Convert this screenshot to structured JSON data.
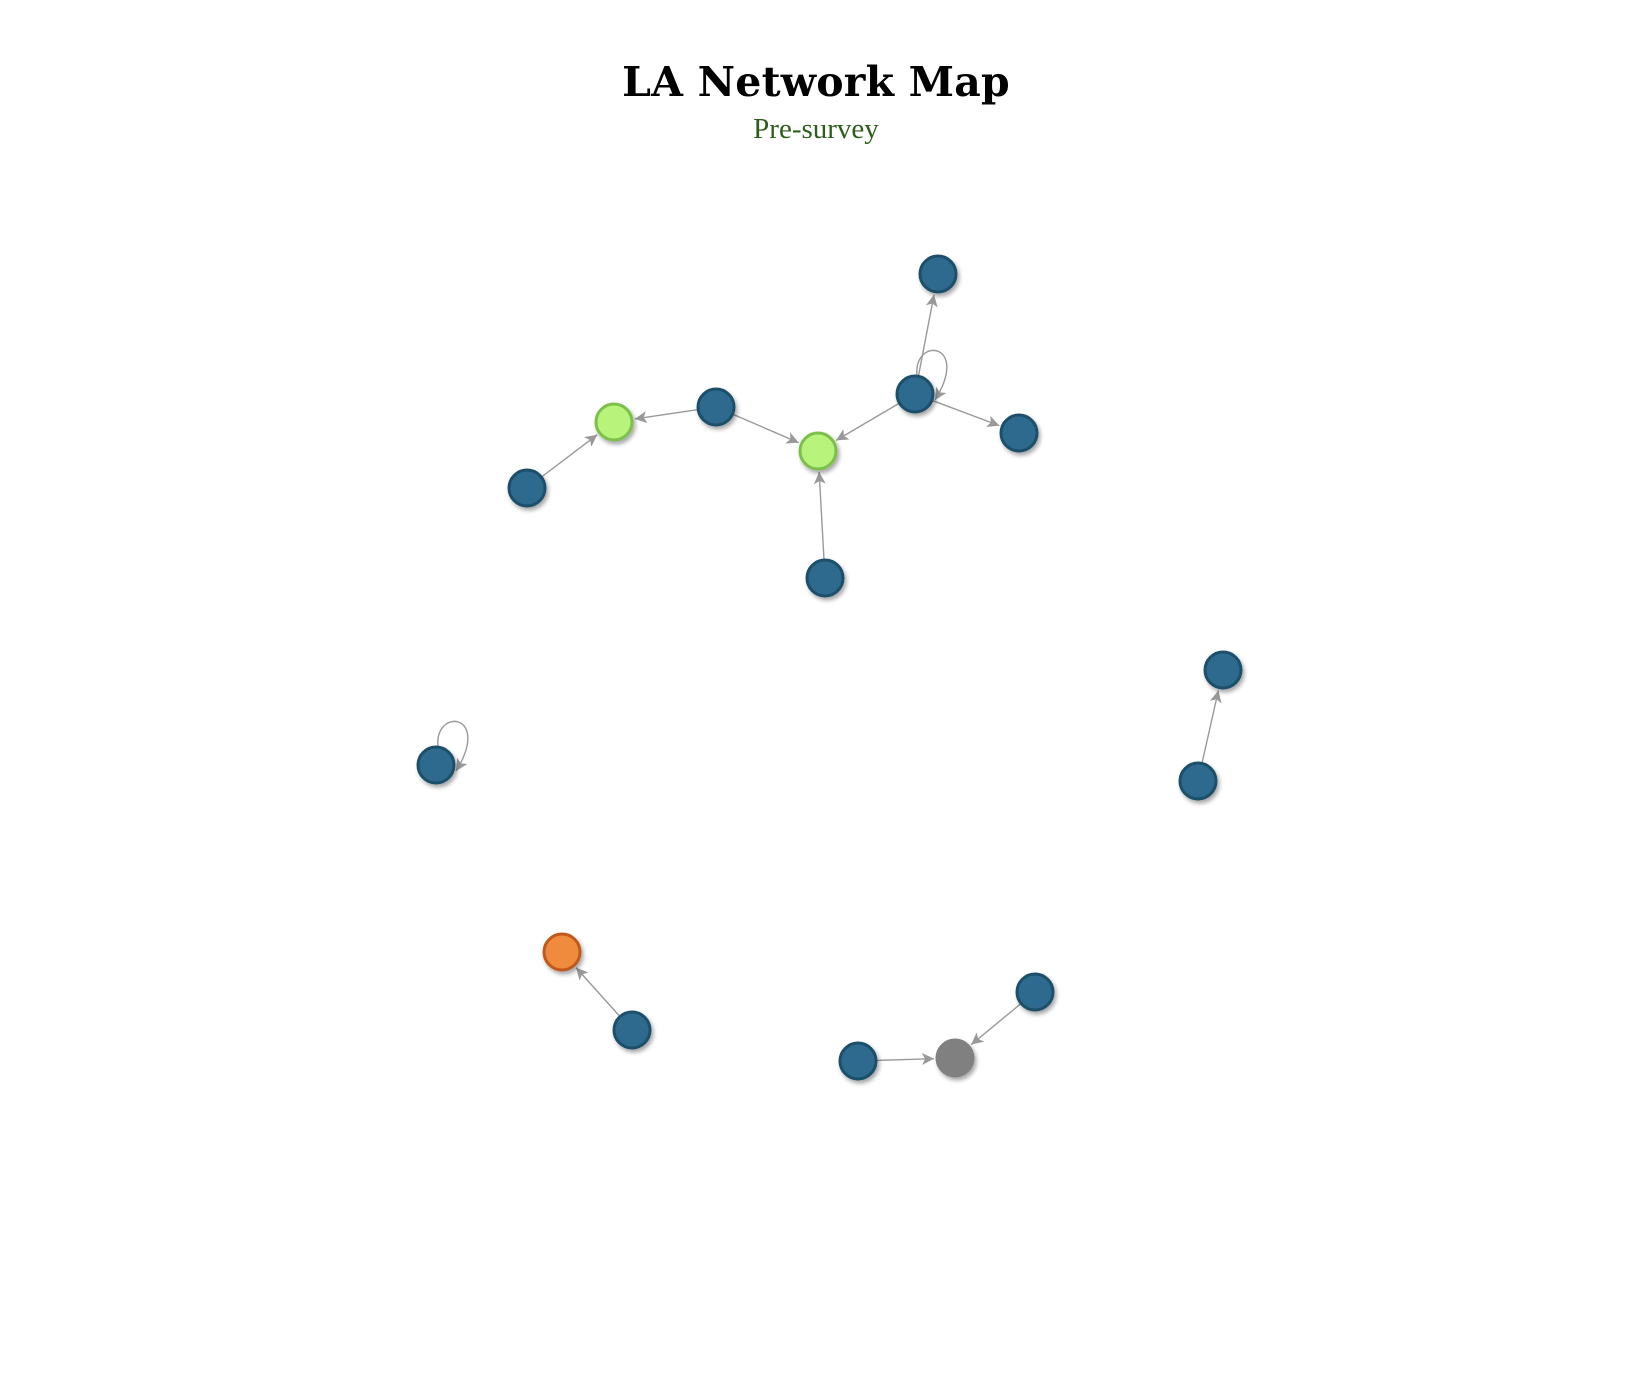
{
  "header": {
    "title": "LA Network Map",
    "subtitle": "Pre-survey"
  },
  "colors": {
    "edge": "#999999",
    "title": "#000000",
    "subtitle": "#2e5e1c",
    "node_default_fill": "#2e6b8e",
    "node_default_stroke": "#1f4f6b",
    "node_highlight_fill": "#b8f47c",
    "node_highlight_stroke": "#7cc04c",
    "node_orange_fill": "#f08a3c",
    "node_orange_stroke": "#c05a1c",
    "node_gray_fill": "#808080",
    "node_gray_stroke": "#808080"
  },
  "network": {
    "nodes": [
      {
        "id": "n1",
        "group": "default"
      },
      {
        "id": "n2",
        "group": "highlight"
      },
      {
        "id": "n3",
        "group": "default"
      },
      {
        "id": "n4",
        "group": "highlight"
      },
      {
        "id": "n5",
        "group": "default"
      },
      {
        "id": "n6",
        "group": "default"
      },
      {
        "id": "n7",
        "group": "default"
      },
      {
        "id": "n8",
        "group": "default"
      },
      {
        "id": "n9",
        "group": "default"
      },
      {
        "id": "n10",
        "group": "default"
      },
      {
        "id": "n11",
        "group": "default"
      },
      {
        "id": "n12",
        "group": "orange"
      },
      {
        "id": "n13",
        "group": "default"
      },
      {
        "id": "n14",
        "group": "default"
      },
      {
        "id": "n15",
        "group": "gray"
      },
      {
        "id": "n16",
        "group": "default"
      },
      {
        "id": "n17",
        "group": "default"
      }
    ],
    "edges": [
      {
        "source": "n1",
        "target": "n2"
      },
      {
        "source": "n3",
        "target": "n2"
      },
      {
        "source": "n3",
        "target": "n4"
      },
      {
        "source": "n5",
        "target": "n4"
      },
      {
        "source": "n6",
        "target": "n4"
      },
      {
        "source": "n6",
        "target": "n7"
      },
      {
        "source": "n6",
        "target": "n8"
      },
      {
        "source": "n6",
        "target": "n6"
      },
      {
        "source": "n11",
        "target": "n11"
      },
      {
        "source": "n13",
        "target": "n12"
      },
      {
        "source": "n14",
        "target": "n15"
      },
      {
        "source": "n16",
        "target": "n15"
      },
      {
        "source": "n17",
        "target": "n10"
      }
    ]
  }
}
